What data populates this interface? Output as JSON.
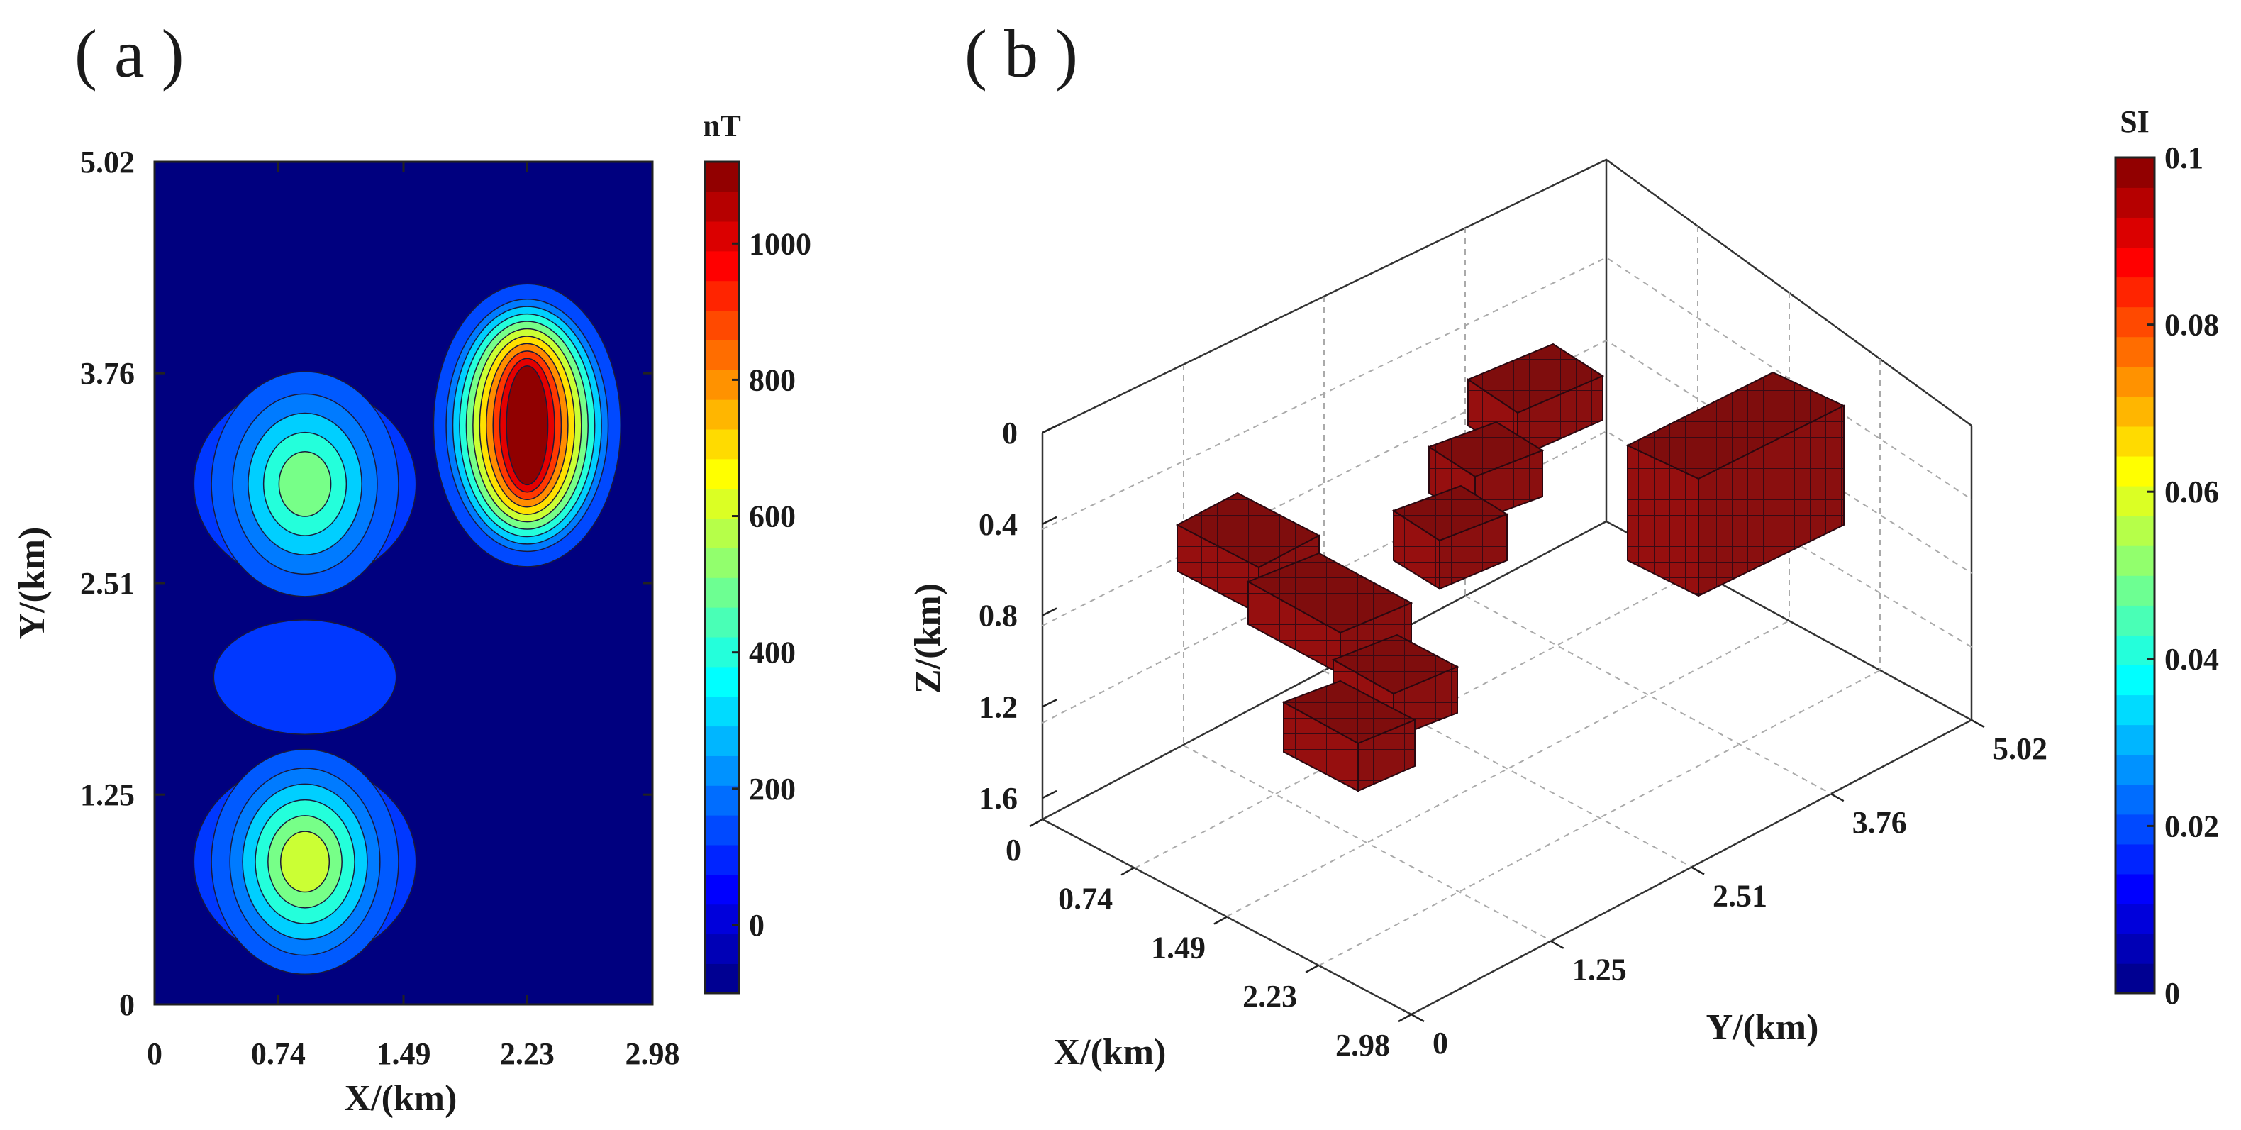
{
  "panels": {
    "a_label": "( a )",
    "b_label": "( b )"
  },
  "chart_data": [
    {
      "panel": "a",
      "type": "heatmap",
      "subtype": "filled-contour",
      "title": "",
      "xlabel": "X/(km)",
      "ylabel": "Y/(km)",
      "xlim": [
        0,
        2.98
      ],
      "ylim": [
        0,
        5.02
      ],
      "xticks": [
        "0",
        "0.74",
        "1.49",
        "2.23",
        "2.98"
      ],
      "yticks": [
        "0",
        "1.25",
        "2.51",
        "3.76",
        "5.02"
      ],
      "colorbar": {
        "title": "nT",
        "range": [
          -100,
          1120
        ],
        "ticks": [
          "0",
          "200",
          "400",
          "600",
          "800",
          "1000"
        ],
        "colormap": "jet"
      },
      "anomalies": [
        {
          "name": "north-east anomaly",
          "x": 2.23,
          "y": 3.45,
          "peak_nT": 1100
        },
        {
          "name": "west-upper anomaly",
          "x": 0.9,
          "y": 3.1,
          "peak_nT": 560
        },
        {
          "name": "west-lower anomaly",
          "x": 0.9,
          "y": 0.85,
          "peak_nT": 660
        }
      ]
    },
    {
      "panel": "b",
      "type": "scatter",
      "subtype": "3d-voxel-model",
      "title": "",
      "xlabel": "X/(km)",
      "ylabel": "Y/(km)",
      "zlabel": "Z/(km)",
      "xlim": [
        0,
        2.98
      ],
      "ylim": [
        0,
        5.02
      ],
      "zlim": [
        0,
        1.6
      ],
      "xticks": [
        "0",
        "0.74",
        "1.49",
        "2.23",
        "2.98"
      ],
      "yticks": [
        "0",
        "1.25",
        "2.51",
        "3.76",
        "5.02"
      ],
      "zticks": [
        "0",
        "0.4",
        "0.8",
        "1.2",
        "1.6"
      ],
      "colorbar": {
        "title": "SI",
        "range": [
          0,
          0.1
        ],
        "ticks": [
          "0",
          "0.02",
          "0.04",
          "0.06",
          "0.08",
          "0.1"
        ],
        "colormap": "jet"
      },
      "bodies": [
        {
          "name": "dipping step body",
          "susceptibility_SI": 0.1
        },
        {
          "name": "rectangular prism",
          "susceptibility_SI": 0.1
        }
      ]
    }
  ]
}
